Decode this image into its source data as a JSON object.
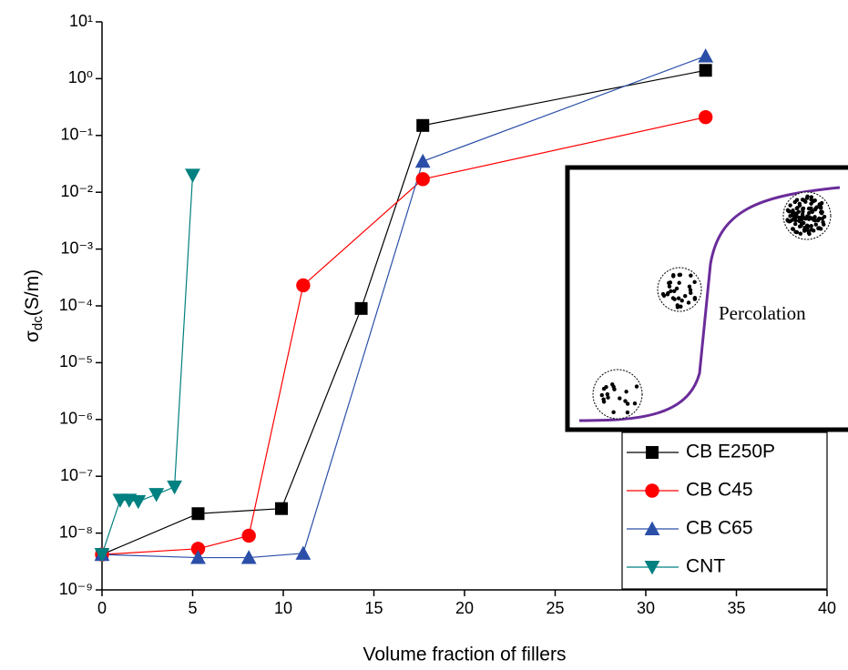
{
  "chart_data": {
    "type": "line",
    "xlabel": "Volume fraction of fillers",
    "ylabel": {
      "symbol": "σ",
      "subscript": "dc",
      "unit": "(S/m)"
    },
    "xlim": [
      0,
      40
    ],
    "xticks": [
      0,
      5,
      10,
      15,
      20,
      25,
      30,
      35,
      40
    ],
    "ylim": [
      1e-09,
      10
    ],
    "log_y": true,
    "yticks": [
      {
        "value": 10,
        "label": "10¹"
      },
      {
        "value": 1,
        "label": "10⁰"
      },
      {
        "value": 0.1,
        "label": "10⁻¹"
      },
      {
        "value": 0.01,
        "label": "10⁻²"
      },
      {
        "value": 0.001,
        "label": "10⁻³"
      },
      {
        "value": 0.0001,
        "label": "10⁻⁴"
      },
      {
        "value": 1e-05,
        "label": "10⁻⁵"
      },
      {
        "value": 1e-06,
        "label": "10⁻⁶"
      },
      {
        "value": 1e-07,
        "label": "10⁻⁷"
      },
      {
        "value": 1e-08,
        "label": "10⁻⁸"
      },
      {
        "value": 1e-09,
        "label": "10⁻⁹"
      }
    ],
    "legend_position": "lower right",
    "series": [
      {
        "name": "CB E250P",
        "color": "#000000",
        "marker": "square",
        "x": [
          0,
          5.3,
          9.9,
          14.3,
          17.7,
          33.3
        ],
        "values": [
          4.2e-09,
          2.2e-08,
          2.7e-08,
          9e-05,
          0.15,
          1.4
        ]
      },
      {
        "name": "CB C45",
        "color": "#ff0000",
        "marker": "circle",
        "x": [
          0,
          5.3,
          8.1,
          11.1,
          17.7,
          33.3
        ],
        "values": [
          4.2e-09,
          5.3e-09,
          9e-09,
          0.00023,
          0.017,
          0.21
        ]
      },
      {
        "name": "CB C65",
        "color": "#2b4fa8",
        "marker": "triangle-up",
        "x": [
          0,
          5.3,
          8.1,
          11.1,
          17.7,
          33.3
        ],
        "values": [
          4.2e-09,
          3.7e-09,
          3.7e-09,
          4.4e-09,
          0.035,
          2.5
        ]
      },
      {
        "name": "CNT",
        "color": "#008080",
        "marker": "triangle-down",
        "x": [
          0,
          1,
          1.5,
          2,
          3,
          4,
          5
        ],
        "values": [
          4.2e-09,
          3.8e-08,
          3.8e-08,
          3.6e-08,
          4.8e-08,
          6.5e-08,
          0.02
        ]
      }
    ],
    "inset_label": "Percolation"
  }
}
